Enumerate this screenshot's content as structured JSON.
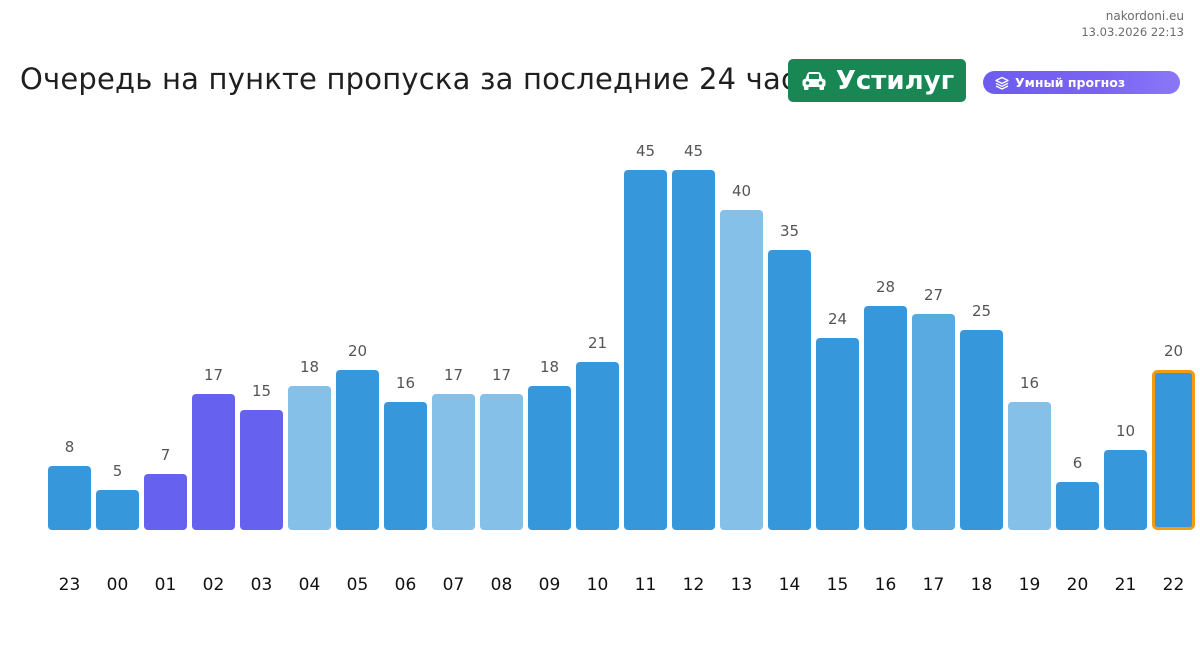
{
  "site": {
    "name": "nakordoni.eu",
    "timestamp": "13.03.2026 22:13"
  },
  "header": {
    "title": "Очередь на пункте пропуска за последние 24 часа",
    "place": "Устилуг",
    "place_icon": "car-icon",
    "forecast_label": "Умный прогноз",
    "forecast_icon": "layers-icon"
  },
  "colors": {
    "blue": "#3797db",
    "light_blue": "#84c0e8",
    "mid_blue": "#5aaae2",
    "purple": "#6662ef",
    "highlight_border": "#f39c12",
    "badge_green": "#198754"
  },
  "chart_data": {
    "type": "bar",
    "categories": [
      "23",
      "00",
      "01",
      "02",
      "03",
      "04",
      "05",
      "06",
      "07",
      "08",
      "09",
      "10",
      "11",
      "12",
      "13",
      "14",
      "15",
      "16",
      "17",
      "18",
      "19",
      "20",
      "21",
      "22"
    ],
    "values": [
      8,
      5,
      7,
      17,
      15,
      18,
      20,
      16,
      17,
      17,
      18,
      21,
      45,
      45,
      40,
      35,
      24,
      28,
      27,
      25,
      16,
      6,
      10,
      20
    ],
    "bar_colors": [
      "blue",
      "blue",
      "purple",
      "purple",
      "purple",
      "light_blue",
      "blue",
      "blue",
      "light_blue",
      "light_blue",
      "blue",
      "blue",
      "blue",
      "blue",
      "light_blue",
      "blue",
      "blue",
      "blue",
      "mid_blue",
      "blue",
      "light_blue",
      "blue",
      "blue",
      "blue"
    ],
    "highlighted_index": 23,
    "data_labels": true,
    "grid": false,
    "ylim": [
      0,
      45
    ]
  }
}
